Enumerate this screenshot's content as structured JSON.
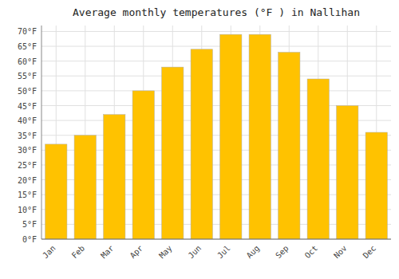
{
  "chart_data": {
    "type": "bar",
    "title": "Average monthly temperatures (°F ) in Nallıhan",
    "categories": [
      "Jan",
      "Feb",
      "Mar",
      "Apr",
      "May",
      "Jun",
      "Jul",
      "Aug",
      "Sep",
      "Oct",
      "Nov",
      "Dec"
    ],
    "values": [
      32,
      35,
      42,
      50,
      58,
      64,
      69,
      69,
      63,
      54,
      45,
      36
    ],
    "color": "#FFC200",
    "ylim": [
      0,
      72
    ],
    "yticks": [
      {
        "value": 0,
        "label": "0°F"
      },
      {
        "value": 5,
        "label": "5°F"
      },
      {
        "value": 10,
        "label": "10°F"
      },
      {
        "value": 15,
        "label": "15°F"
      },
      {
        "value": 20,
        "label": "20°F"
      },
      {
        "value": 25,
        "label": "25°F"
      },
      {
        "value": 30,
        "label": "30°F"
      },
      {
        "value": 35,
        "label": "35°F"
      },
      {
        "value": 40,
        "label": "40°F"
      },
      {
        "value": 45,
        "label": "45°F"
      },
      {
        "value": 50,
        "label": "50°F"
      },
      {
        "value": 55,
        "label": "55°F"
      },
      {
        "value": 60,
        "label": "60°F"
      },
      {
        "value": 65,
        "label": "65°F"
      },
      {
        "value": 70,
        "label": "70°F"
      }
    ],
    "grid": true
  }
}
